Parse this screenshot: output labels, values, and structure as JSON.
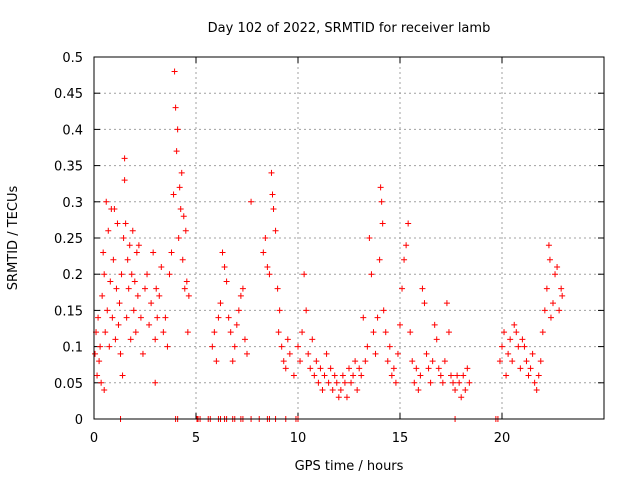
{
  "chart_data": {
    "type": "scatter",
    "title": "Day 102 of 2022, SRMTID for receiver lamb",
    "xlabel": "GPS time / hours",
    "ylabel": "SRMTID / TECUs",
    "xlim": [
      0,
      25
    ],
    "ylim": [
      0,
      0.5
    ],
    "x_ticks": [
      0,
      5,
      10,
      15,
      20
    ],
    "x_tick_labels": [
      "0",
      "5",
      "10",
      "15",
      "20"
    ],
    "y_ticks": [
      0,
      0.05,
      0.1,
      0.15,
      0.2,
      0.25,
      0.3,
      0.35,
      0.4,
      0.45,
      0.5
    ],
    "y_tick_labels": [
      "0",
      "0.05",
      "0.1",
      "0.15",
      "0.2",
      "0.25",
      "0.3",
      "0.35",
      "0.4",
      "0.45",
      "0.5"
    ],
    "grid": true,
    "marker": "+",
    "color": "#ff0000",
    "series": [
      {
        "name": "SRMTID",
        "points": [
          [
            0.05,
            0.09
          ],
          [
            0.1,
            0.12
          ],
          [
            0.15,
            0.06
          ],
          [
            0.2,
            0.14
          ],
          [
            0.25,
            0.08
          ],
          [
            0.3,
            0.1
          ],
          [
            0.35,
            0.05
          ],
          [
            0.4,
            0.17
          ],
          [
            0.45,
            0.23
          ],
          [
            0.5,
            0.04
          ],
          [
            0.5,
            0.2
          ],
          [
            0.55,
            0.12
          ],
          [
            0.6,
            0.3
          ],
          [
            0.65,
            0.15
          ],
          [
            0.7,
            0.26
          ],
          [
            0.75,
            0.1
          ],
          [
            0.8,
            0.19
          ],
          [
            0.85,
            0.29
          ],
          [
            0.9,
            0.14
          ],
          [
            0.95,
            0.22
          ],
          [
            1.0,
            0.29
          ],
          [
            1.05,
            0.11
          ],
          [
            1.1,
            0.18
          ],
          [
            1.15,
            0.27
          ],
          [
            1.2,
            0.13
          ],
          [
            1.25,
            0.16
          ],
          [
            1.3,
            0.09
          ],
          [
            1.35,
            0.2
          ],
          [
            1.4,
            0.06
          ],
          [
            1.45,
            0.25
          ],
          [
            1.5,
            0.36
          ],
          [
            1.5,
            0.33
          ],
          [
            1.55,
            0.27
          ],
          [
            1.6,
            0.14
          ],
          [
            1.65,
            0.22
          ],
          [
            1.7,
            0.18
          ],
          [
            1.75,
            0.24
          ],
          [
            1.8,
            0.11
          ],
          [
            1.85,
            0.2
          ],
          [
            1.9,
            0.26
          ],
          [
            1.95,
            0.15
          ],
          [
            2.0,
            0.19
          ],
          [
            2.05,
            0.12
          ],
          [
            2.1,
            0.23
          ],
          [
            2.15,
            0.17
          ],
          [
            2.2,
            0.24
          ],
          [
            2.3,
            0.14
          ],
          [
            2.4,
            0.09
          ],
          [
            2.5,
            0.18
          ],
          [
            2.6,
            0.2
          ],
          [
            2.7,
            0.13
          ],
          [
            2.8,
            0.16
          ],
          [
            2.9,
            0.23
          ],
          [
            3.0,
            0.05
          ],
          [
            3.0,
            0.11
          ],
          [
            3.05,
            0.18
          ],
          [
            3.1,
            0.14
          ],
          [
            3.2,
            0.17
          ],
          [
            3.3,
            0.21
          ],
          [
            3.4,
            0.12
          ],
          [
            3.5,
            0.14
          ],
          [
            3.6,
            0.1
          ],
          [
            3.7,
            0.2
          ],
          [
            3.8,
            0.23
          ],
          [
            3.9,
            0.31
          ],
          [
            3.95,
            0.48
          ],
          [
            4.0,
            0.43
          ],
          [
            4.05,
            0.37
          ],
          [
            4.1,
            0.4
          ],
          [
            4.15,
            0.25
          ],
          [
            4.2,
            0.32
          ],
          [
            4.25,
            0.29
          ],
          [
            4.3,
            0.34
          ],
          [
            4.35,
            0.22
          ],
          [
            4.4,
            0.28
          ],
          [
            4.45,
            0.18
          ],
          [
            4.5,
            0.26
          ],
          [
            4.55,
            0.19
          ],
          [
            4.6,
            0.12
          ],
          [
            4.65,
            0.17
          ],
          [
            5.8,
            0.1
          ],
          [
            5.9,
            0.12
          ],
          [
            6.0,
            0.08
          ],
          [
            6.1,
            0.14
          ],
          [
            6.2,
            0.16
          ],
          [
            6.3,
            0.23
          ],
          [
            6.4,
            0.21
          ],
          [
            6.5,
            0.19
          ],
          [
            6.6,
            0.14
          ],
          [
            6.7,
            0.12
          ],
          [
            6.8,
            0.08
          ],
          [
            6.9,
            0.1
          ],
          [
            7.0,
            0.13
          ],
          [
            7.1,
            0.15
          ],
          [
            7.2,
            0.17
          ],
          [
            7.3,
            0.18
          ],
          [
            7.4,
            0.11
          ],
          [
            7.5,
            0.09
          ],
          [
            7.7,
            0.3
          ],
          [
            8.3,
            0.23
          ],
          [
            8.4,
            0.25
          ],
          [
            8.5,
            0.21
          ],
          [
            8.6,
            0.2
          ],
          [
            8.7,
            0.34
          ],
          [
            8.75,
            0.31
          ],
          [
            8.8,
            0.29
          ],
          [
            8.9,
            0.26
          ],
          [
            9.0,
            0.18
          ],
          [
            9.05,
            0.12
          ],
          [
            9.1,
            0.15
          ],
          [
            9.2,
            0.1
          ],
          [
            9.3,
            0.08
          ],
          [
            9.4,
            0.07
          ],
          [
            9.5,
            0.11
          ],
          [
            9.6,
            0.09
          ],
          [
            9.8,
            0.06
          ],
          [
            10.0,
            0.1
          ],
          [
            10.1,
            0.08
          ],
          [
            10.2,
            0.12
          ],
          [
            10.3,
            0.2
          ],
          [
            10.4,
            0.15
          ],
          [
            10.5,
            0.09
          ],
          [
            10.6,
            0.07
          ],
          [
            10.7,
            0.11
          ],
          [
            10.8,
            0.06
          ],
          [
            10.9,
            0.08
          ],
          [
            11.0,
            0.05
          ],
          [
            11.1,
            0.07
          ],
          [
            11.2,
            0.04
          ],
          [
            11.3,
            0.06
          ],
          [
            11.4,
            0.09
          ],
          [
            11.5,
            0.05
          ],
          [
            11.6,
            0.07
          ],
          [
            11.7,
            0.04
          ],
          [
            11.8,
            0.06
          ],
          [
            11.9,
            0.05
          ],
          [
            12.0,
            0.03
          ],
          [
            12.1,
            0.04
          ],
          [
            12.2,
            0.06
          ],
          [
            12.3,
            0.05
          ],
          [
            12.4,
            0.03
          ],
          [
            12.5,
            0.07
          ],
          [
            12.6,
            0.05
          ],
          [
            12.7,
            0.06
          ],
          [
            12.8,
            0.08
          ],
          [
            12.9,
            0.04
          ],
          [
            13.0,
            0.07
          ],
          [
            13.1,
            0.06
          ],
          [
            13.2,
            0.14
          ],
          [
            13.3,
            0.08
          ],
          [
            13.4,
            0.1
          ],
          [
            13.5,
            0.25
          ],
          [
            13.6,
            0.2
          ],
          [
            13.7,
            0.12
          ],
          [
            13.8,
            0.09
          ],
          [
            13.9,
            0.14
          ],
          [
            14.0,
            0.22
          ],
          [
            14.05,
            0.32
          ],
          [
            14.1,
            0.3
          ],
          [
            14.15,
            0.27
          ],
          [
            14.2,
            0.15
          ],
          [
            14.3,
            0.12
          ],
          [
            14.4,
            0.08
          ],
          [
            14.5,
            0.1
          ],
          [
            14.6,
            0.06
          ],
          [
            14.7,
            0.07
          ],
          [
            14.8,
            0.05
          ],
          [
            14.9,
            0.09
          ],
          [
            15.0,
            0.13
          ],
          [
            15.1,
            0.18
          ],
          [
            15.2,
            0.22
          ],
          [
            15.3,
            0.24
          ],
          [
            15.4,
            0.27
          ],
          [
            15.5,
            0.12
          ],
          [
            15.6,
            0.08
          ],
          [
            15.7,
            0.05
          ],
          [
            15.8,
            0.07
          ],
          [
            15.9,
            0.04
          ],
          [
            16.0,
            0.06
          ],
          [
            16.1,
            0.18
          ],
          [
            16.2,
            0.16
          ],
          [
            16.3,
            0.09
          ],
          [
            16.4,
            0.07
          ],
          [
            16.5,
            0.05
          ],
          [
            16.6,
            0.08
          ],
          [
            16.7,
            0.13
          ],
          [
            16.8,
            0.11
          ],
          [
            16.9,
            0.07
          ],
          [
            17.0,
            0.06
          ],
          [
            17.1,
            0.05
          ],
          [
            17.2,
            0.08
          ],
          [
            17.3,
            0.16
          ],
          [
            17.4,
            0.12
          ],
          [
            17.5,
            0.06
          ],
          [
            17.6,
            0.05
          ],
          [
            17.7,
            0.04
          ],
          [
            17.8,
            0.06
          ],
          [
            17.9,
            0.05
          ],
          [
            18.0,
            0.03
          ],
          [
            18.1,
            0.06
          ],
          [
            18.2,
            0.04
          ],
          [
            18.3,
            0.07
          ],
          [
            18.4,
            0.05
          ],
          [
            19.9,
            0.08
          ],
          [
            20.0,
            0.1
          ],
          [
            20.1,
            0.12
          ],
          [
            20.2,
            0.06
          ],
          [
            20.3,
            0.09
          ],
          [
            20.4,
            0.11
          ],
          [
            20.5,
            0.08
          ],
          [
            20.6,
            0.13
          ],
          [
            20.7,
            0.12
          ],
          [
            20.8,
            0.1
          ],
          [
            20.9,
            0.07
          ],
          [
            21.0,
            0.11
          ],
          [
            21.1,
            0.1
          ],
          [
            21.2,
            0.08
          ],
          [
            21.3,
            0.06
          ],
          [
            21.4,
            0.07
          ],
          [
            21.5,
            0.09
          ],
          [
            21.6,
            0.05
          ],
          [
            21.7,
            0.04
          ],
          [
            21.8,
            0.06
          ],
          [
            21.9,
            0.08
          ],
          [
            22.0,
            0.12
          ],
          [
            22.1,
            0.15
          ],
          [
            22.2,
            0.18
          ],
          [
            22.3,
            0.24
          ],
          [
            22.35,
            0.22
          ],
          [
            22.4,
            0.14
          ],
          [
            22.5,
            0.16
          ],
          [
            22.6,
            0.2
          ],
          [
            22.7,
            0.21
          ],
          [
            22.8,
            0.15
          ],
          [
            22.9,
            0.18
          ],
          [
            22.95,
            0.17
          ]
        ]
      }
    ],
    "zero_points_x": [
      1.3,
      4.0,
      4.1,
      5.05,
      5.1,
      5.2,
      5.6,
      5.7,
      6.1,
      6.2,
      6.4,
      6.5,
      6.8,
      6.9,
      7.2,
      7.3,
      7.7,
      8.1,
      8.5,
      8.6,
      8.9,
      9.4,
      9.9,
      10.0,
      17.7,
      19.7,
      19.8
    ]
  }
}
